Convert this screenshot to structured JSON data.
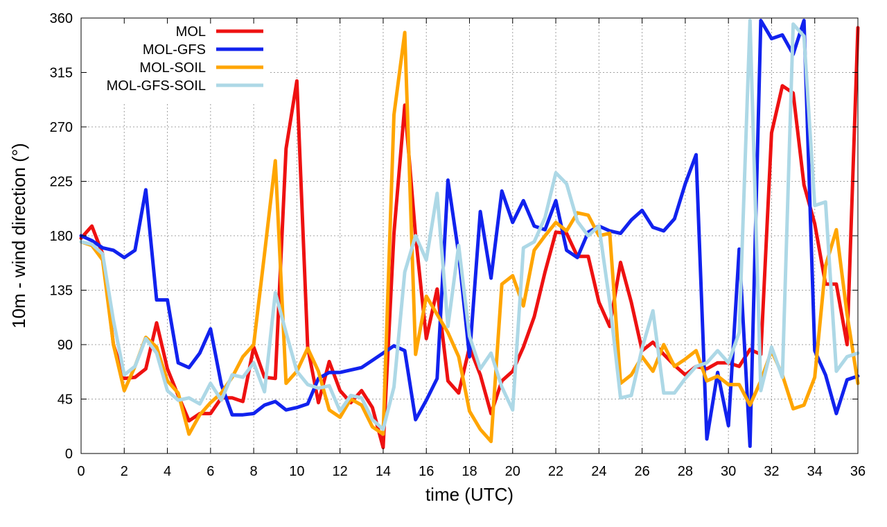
{
  "chart_data": {
    "type": "line",
    "title": "",
    "xlabel": "time (UTC)",
    "ylabel": "10m - wind direction (°)",
    "xlim": [
      0,
      36
    ],
    "ylim": [
      0,
      360
    ],
    "xticks": [
      0,
      2,
      4,
      6,
      8,
      10,
      12,
      14,
      16,
      18,
      20,
      22,
      24,
      26,
      28,
      30,
      32,
      34,
      36
    ],
    "yticks": [
      0,
      45,
      90,
      135,
      180,
      225,
      270,
      315,
      360
    ],
    "grid": true,
    "legend_position": "top-left",
    "series": [
      {
        "name": "MOL",
        "color": "#ee1111",
        "points": [
          [
            0,
            178
          ],
          [
            0.5,
            188
          ],
          [
            1,
            165
          ],
          [
            1.5,
            90
          ],
          [
            2,
            62
          ],
          [
            2.5,
            63
          ],
          [
            3,
            70
          ],
          [
            3.5,
            108
          ],
          [
            4,
            70
          ],
          [
            4.5,
            48
          ],
          [
            5,
            27
          ],
          [
            5.5,
            33
          ],
          [
            6,
            33
          ],
          [
            6.5,
            46
          ],
          [
            7,
            46
          ],
          [
            7.5,
            43
          ],
          [
            8,
            88
          ],
          [
            8.5,
            63
          ],
          [
            9,
            62
          ],
          [
            9.5,
            252
          ],
          [
            10,
            308
          ],
          [
            10.5,
            88
          ],
          [
            11,
            42
          ],
          [
            11.5,
            76
          ],
          [
            12,
            52
          ],
          [
            12.5,
            42
          ],
          [
            13,
            52
          ],
          [
            13.5,
            38
          ],
          [
            14,
            5
          ],
          [
            14.5,
            182
          ],
          [
            15,
            288
          ],
          [
            15.5,
            180
          ],
          [
            16,
            95
          ],
          [
            16.5,
            136
          ],
          [
            17,
            60
          ],
          [
            17.5,
            50
          ],
          [
            18,
            88
          ],
          [
            18.5,
            65
          ],
          [
            19,
            33
          ],
          [
            19.5,
            60
          ],
          [
            20,
            68
          ],
          [
            20.5,
            88
          ],
          [
            21,
            113
          ],
          [
            21.5,
            150
          ],
          [
            22,
            183
          ],
          [
            22.5,
            182
          ],
          [
            23,
            163
          ],
          [
            23.5,
            163
          ],
          [
            24,
            125
          ],
          [
            24.5,
            105
          ],
          [
            25,
            158
          ],
          [
            25.5,
            125
          ],
          [
            26,
            85
          ],
          [
            26.5,
            92
          ],
          [
            27,
            82
          ],
          [
            27.5,
            73
          ],
          [
            28,
            65
          ],
          [
            28.5,
            72
          ],
          [
            29,
            70
          ],
          [
            29.5,
            75
          ],
          [
            30,
            75
          ],
          [
            30.5,
            72
          ],
          [
            31,
            86
          ],
          [
            31.5,
            82
          ],
          [
            32,
            265
          ],
          [
            32.5,
            304
          ],
          [
            33,
            298
          ],
          [
            33.5,
            222
          ],
          [
            34,
            190
          ],
          [
            34.5,
            140
          ],
          [
            35,
            140
          ],
          [
            35.5,
            90
          ],
          [
            36,
            352
          ]
        ]
      },
      {
        "name": "MOL-GFS",
        "color": "#1122ee",
        "points": [
          [
            0,
            180
          ],
          [
            0.5,
            176
          ],
          [
            1,
            170
          ],
          [
            1.5,
            168
          ],
          [
            2,
            162
          ],
          [
            2.5,
            168
          ],
          [
            3,
            218
          ],
          [
            3.5,
            127
          ],
          [
            4,
            127
          ],
          [
            4.5,
            75
          ],
          [
            5,
            71
          ],
          [
            5.5,
            83
          ],
          [
            6,
            103
          ],
          [
            6.5,
            57
          ],
          [
            7,
            32
          ],
          [
            7.5,
            32
          ],
          [
            8,
            33
          ],
          [
            8.5,
            40
          ],
          [
            9,
            43
          ],
          [
            9.5,
            36
          ],
          [
            10,
            38
          ],
          [
            10.5,
            41
          ],
          [
            11,
            62
          ],
          [
            11.5,
            67
          ],
          [
            12,
            67
          ],
          [
            12.5,
            69
          ],
          [
            13,
            71
          ],
          [
            13.5,
            77
          ],
          [
            14,
            83
          ],
          [
            14.5,
            89
          ],
          [
            15,
            85
          ],
          [
            15.5,
            28
          ],
          [
            16,
            44
          ],
          [
            16.5,
            62
          ],
          [
            17,
            226
          ],
          [
            17.5,
            165
          ],
          [
            18,
            80
          ],
          [
            18.5,
            200
          ],
          [
            19,
            145
          ],
          [
            19.5,
            217
          ],
          [
            20,
            191
          ],
          [
            20.5,
            209
          ],
          [
            21,
            188
          ],
          [
            21.5,
            185
          ],
          [
            22,
            209
          ],
          [
            22.5,
            168
          ],
          [
            23,
            162
          ],
          [
            23.5,
            183
          ],
          [
            24,
            188
          ],
          [
            24.5,
            184
          ],
          [
            25,
            182
          ],
          [
            25.5,
            193
          ],
          [
            26,
            201
          ],
          [
            26.5,
            187
          ],
          [
            27,
            184
          ],
          [
            27.5,
            194
          ],
          [
            28,
            223
          ],
          [
            28.5,
            247
          ],
          [
            29,
            12
          ],
          [
            29.5,
            67
          ],
          [
            30,
            23
          ],
          [
            30.5,
            169
          ],
          [
            31,
            6
          ],
          [
            31.5,
            358
          ],
          [
            32,
            343
          ],
          [
            32.5,
            346
          ],
          [
            33,
            330
          ],
          [
            33.5,
            358
          ],
          [
            34,
            85
          ],
          [
            34.5,
            65
          ],
          [
            35,
            33
          ],
          [
            35.5,
            61
          ],
          [
            36,
            64
          ]
        ]
      },
      {
        "name": "MOL-SOIL",
        "color": "#ffa500",
        "points": [
          [
            0,
            175
          ],
          [
            0.5,
            172
          ],
          [
            1,
            160
          ],
          [
            1.5,
            90
          ],
          [
            2,
            52
          ],
          [
            2.5,
            72
          ],
          [
            3,
            96
          ],
          [
            3.5,
            88
          ],
          [
            4,
            60
          ],
          [
            4.5,
            50
          ],
          [
            5,
            16
          ],
          [
            5.5,
            32
          ],
          [
            6,
            42
          ],
          [
            6.5,
            50
          ],
          [
            7,
            63
          ],
          [
            7.5,
            80
          ],
          [
            8,
            90
          ],
          [
            8.5,
            165
          ],
          [
            9,
            242
          ],
          [
            9.5,
            58
          ],
          [
            10,
            68
          ],
          [
            10.5,
            87
          ],
          [
            11,
            68
          ],
          [
            11.5,
            36
          ],
          [
            12,
            30
          ],
          [
            12.5,
            45
          ],
          [
            13,
            40
          ],
          [
            13.5,
            22
          ],
          [
            14,
            16
          ],
          [
            14.5,
            280
          ],
          [
            15,
            348
          ],
          [
            15.5,
            82
          ],
          [
            16,
            130
          ],
          [
            16.5,
            115
          ],
          [
            17,
            100
          ],
          [
            17.5,
            80
          ],
          [
            18,
            35
          ],
          [
            18.5,
            20
          ],
          [
            19,
            10
          ],
          [
            19.5,
            140
          ],
          [
            20,
            147
          ],
          [
            20.5,
            122
          ],
          [
            21,
            168
          ],
          [
            21.5,
            180
          ],
          [
            22,
            191
          ],
          [
            22.5,
            184
          ],
          [
            23,
            199
          ],
          [
            23.5,
            197
          ],
          [
            24,
            180
          ],
          [
            24.5,
            182
          ],
          [
            25,
            58
          ],
          [
            25.5,
            65
          ],
          [
            26,
            80
          ],
          [
            26.5,
            68
          ],
          [
            27,
            90
          ],
          [
            27.5,
            72
          ],
          [
            28,
            78
          ],
          [
            28.5,
            85
          ],
          [
            29,
            60
          ],
          [
            29.5,
            64
          ],
          [
            30,
            57
          ],
          [
            30.5,
            57
          ],
          [
            31,
            40
          ],
          [
            31.5,
            60
          ],
          [
            32,
            85
          ],
          [
            32.5,
            65
          ],
          [
            33,
            37
          ],
          [
            33.5,
            40
          ],
          [
            34,
            63
          ],
          [
            34.5,
            155
          ],
          [
            35,
            185
          ],
          [
            35.5,
            115
          ],
          [
            36,
            58
          ]
        ]
      },
      {
        "name": "MOL-GFS-SOIL",
        "color": "#add8e6",
        "points": [
          [
            0,
            175
          ],
          [
            0.5,
            173
          ],
          [
            1,
            165
          ],
          [
            1.5,
            110
          ],
          [
            2,
            65
          ],
          [
            2.5,
            72
          ],
          [
            3,
            95
          ],
          [
            3.5,
            83
          ],
          [
            4,
            52
          ],
          [
            4.5,
            44
          ],
          [
            5,
            46
          ],
          [
            5.5,
            41
          ],
          [
            6,
            58
          ],
          [
            6.5,
            44
          ],
          [
            7,
            65
          ],
          [
            7.5,
            63
          ],
          [
            8,
            75
          ],
          [
            8.5,
            51
          ],
          [
            9,
            133
          ],
          [
            9.5,
            100
          ],
          [
            10,
            68
          ],
          [
            10.5,
            57
          ],
          [
            11,
            54
          ],
          [
            11.5,
            56
          ],
          [
            12,
            35
          ],
          [
            12.5,
            48
          ],
          [
            13,
            46
          ],
          [
            13.5,
            28
          ],
          [
            14,
            20
          ],
          [
            14.5,
            55
          ],
          [
            15,
            150
          ],
          [
            15.5,
            180
          ],
          [
            16,
            160
          ],
          [
            16.5,
            215
          ],
          [
            17,
            105
          ],
          [
            17.5,
            172
          ],
          [
            18,
            97
          ],
          [
            18.5,
            70
          ],
          [
            19,
            83
          ],
          [
            19.5,
            55
          ],
          [
            20,
            36
          ],
          [
            20.5,
            170
          ],
          [
            21,
            175
          ],
          [
            21.5,
            195
          ],
          [
            22,
            232
          ],
          [
            22.5,
            223
          ],
          [
            23,
            192
          ],
          [
            23.5,
            180
          ],
          [
            24,
            188
          ],
          [
            24.5,
            125
          ],
          [
            25,
            46
          ],
          [
            25.5,
            48
          ],
          [
            26,
            87
          ],
          [
            26.5,
            118
          ],
          [
            27,
            50
          ],
          [
            27.5,
            50
          ],
          [
            28,
            62
          ],
          [
            28.5,
            72
          ],
          [
            29,
            75
          ],
          [
            29.5,
            85
          ],
          [
            30,
            75
          ],
          [
            30.5,
            100
          ],
          [
            31,
            358
          ],
          [
            31.5,
            52
          ],
          [
            32,
            88
          ],
          [
            32.5,
            63
          ],
          [
            33,
            355
          ],
          [
            33.5,
            345
          ],
          [
            34,
            205
          ],
          [
            34.5,
            208
          ],
          [
            35,
            68
          ],
          [
            35.5,
            80
          ],
          [
            36,
            83
          ]
        ]
      }
    ]
  }
}
